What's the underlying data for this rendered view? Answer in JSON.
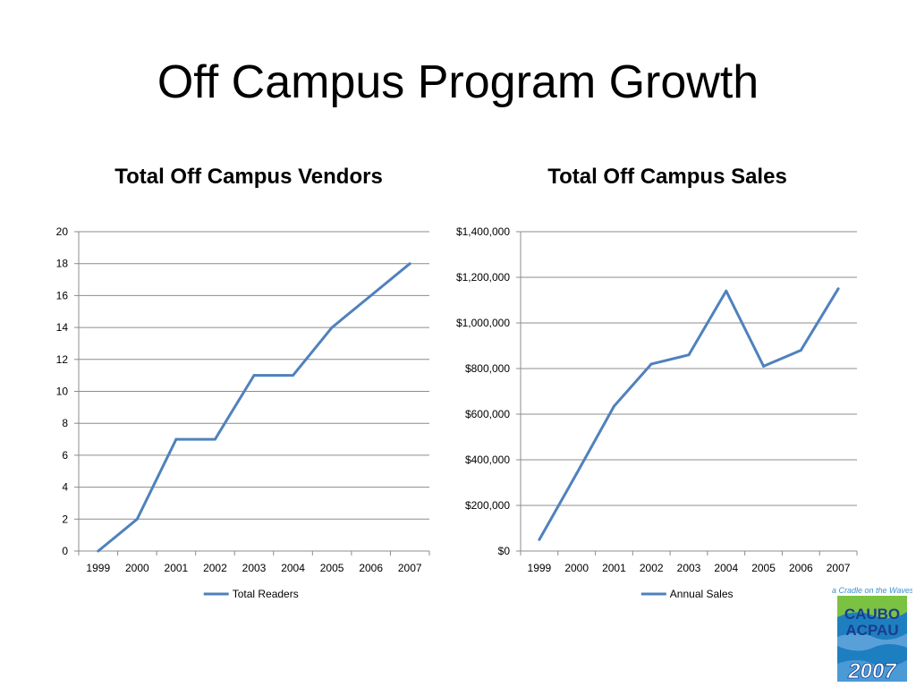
{
  "slide": {
    "title": "Off Campus Program Growth"
  },
  "chart_data": [
    {
      "type": "line",
      "title": "Total Off Campus Vendors",
      "xlabel": "",
      "ylabel": "",
      "categories": [
        "1999",
        "2000",
        "2001",
        "2002",
        "2003",
        "2004",
        "2005",
        "2006",
        "2007"
      ],
      "series": [
        {
          "name": "Total Readers",
          "values": [
            0,
            2,
            7,
            7,
            11,
            11,
            14,
            16,
            18
          ],
          "color": "#4f81bd"
        }
      ],
      "ylim": [
        0,
        20
      ],
      "yticks": [
        0,
        2,
        4,
        6,
        8,
        10,
        12,
        14,
        16,
        18,
        20
      ],
      "ytick_labels": [
        "0",
        "2",
        "4",
        "6",
        "8",
        "10",
        "12",
        "14",
        "16",
        "18",
        "20"
      ],
      "grid": true,
      "legend": "bottom"
    },
    {
      "type": "line",
      "title": "Total Off Campus Sales",
      "xlabel": "",
      "ylabel": "",
      "categories": [
        "1999",
        "2000",
        "2001",
        "2002",
        "2003",
        "2004",
        "2005",
        "2006",
        "2007"
      ],
      "series": [
        {
          "name": "Annual Sales",
          "values": [
            50000,
            340000,
            635000,
            820000,
            860000,
            1140000,
            810000,
            880000,
            1150000
          ],
          "color": "#4f81bd"
        }
      ],
      "ylim": [
        0,
        1400000
      ],
      "yticks": [
        0,
        200000,
        400000,
        600000,
        800000,
        1000000,
        1200000,
        1400000
      ],
      "ytick_labels": [
        "$0",
        "$200,000",
        "$400,000",
        "$600,000",
        "$800,000",
        "$1,000,000",
        "$1,200,000",
        "$1,400,000"
      ],
      "grid": true,
      "legend": "bottom"
    }
  ],
  "logo": {
    "tagline": "a Cradle on the Waves",
    "line1": "CAUBO",
    "line2": "ACPAU",
    "year": "2007"
  }
}
